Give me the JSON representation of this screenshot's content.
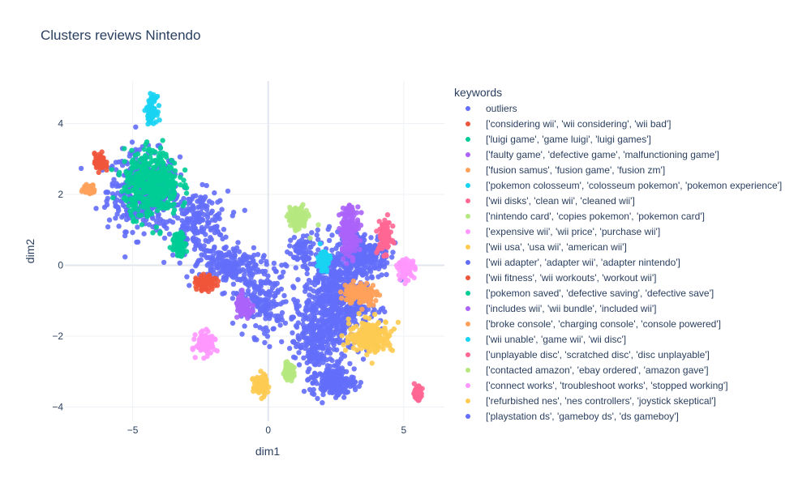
{
  "chart_data": {
    "type": "scatter",
    "title": "Clusters reviews Nintendo",
    "xlabel": "dim1",
    "ylabel": "dim2",
    "xlim": [
      -7.5,
      6.5
    ],
    "ylim": [
      -4.4,
      5.2
    ],
    "xticks": [
      -5,
      0,
      5
    ],
    "yticks": [
      -4,
      -2,
      0,
      2,
      4
    ],
    "grid": true,
    "legend_title": "keywords",
    "legend_position": "right",
    "series": [
      {
        "name": "outliers",
        "color": "#636efa"
      },
      {
        "name": "['considering wii', 'wii considering', 'wii bad']",
        "color": "#EF553B",
        "center": [
          -6.2,
          2.9
        ],
        "spread": [
          0.2,
          0.25
        ]
      },
      {
        "name": "['luigi game', 'game luigi', 'luigi games']",
        "color": "#00cc96",
        "center": [
          -4.3,
          2.3
        ],
        "spread": [
          1.0,
          0.9
        ]
      },
      {
        "name": "['faulty game', 'defective game', 'malfunctioning game']",
        "color": "#ab63fa",
        "center": [
          -0.9,
          -1.2
        ],
        "spread": [
          0.3,
          0.3
        ]
      },
      {
        "name": "['fusion samus', 'fusion game', 'fusion zm']",
        "color": "#FFA15A",
        "center": [
          -6.6,
          2.15
        ],
        "spread": [
          0.2,
          0.12
        ]
      },
      {
        "name": "['pokemon colosseum', 'colosseum pokemon', 'pokemon experience']",
        "color": "#19d3f3",
        "center": [
          -4.3,
          4.4
        ],
        "spread": [
          0.18,
          0.35
        ]
      },
      {
        "name": "['wii disks', 'clean wii', 'cleaned wii']",
        "color": "#FF6692",
        "center": [
          4.3,
          0.8
        ],
        "spread": [
          0.25,
          0.45
        ]
      },
      {
        "name": "['nintendo card', 'copies pokemon', 'pokemon card']",
        "color": "#B6E880",
        "center": [
          1.1,
          1.3
        ],
        "spread": [
          0.35,
          0.35
        ]
      },
      {
        "name": "['expensive wii', 'wii price', 'purchase wii']",
        "color": "#FF97FF",
        "center": [
          -2.3,
          -2.2
        ],
        "spread": [
          0.35,
          0.3
        ]
      },
      {
        "name": "['wii usa', 'usa wii', 'american wii']",
        "color": "#FECB52",
        "center": [
          -0.3,
          -3.4
        ],
        "spread": [
          0.25,
          0.3
        ]
      },
      {
        "name": "['wii adapter', 'adapter wii', 'adapter nintendo']",
        "color": "#636efa"
      },
      {
        "name": "['wii fitness', 'wii workouts', 'workout wii']",
        "color": "#EF553B",
        "center": [
          -2.3,
          -0.5
        ],
        "spread": [
          0.35,
          0.2
        ]
      },
      {
        "name": "['pokemon saved', 'defective saving', 'defective save']",
        "color": "#00cc96",
        "center": [
          -3.3,
          0.6
        ],
        "spread": [
          0.25,
          0.3
        ]
      },
      {
        "name": "['includes wii', 'wii bundle', 'included wii']",
        "color": "#ab63fa",
        "center": [
          3.0,
          1.0
        ],
        "spread": [
          0.35,
          0.7
        ]
      },
      {
        "name": "['broke console', 'charging console', 'console powered']",
        "color": "#FFA15A",
        "center": [
          3.4,
          -0.8
        ],
        "spread": [
          0.6,
          0.3
        ]
      },
      {
        "name": "['wii unable', 'game wii', 'wii disc']",
        "color": "#19d3f3",
        "center": [
          2.05,
          0.15
        ],
        "spread": [
          0.22,
          0.3
        ]
      },
      {
        "name": "['unplayable disc', 'scratched disc', 'disc unplayable']",
        "color": "#FF6692",
        "center": [
          5.5,
          -3.6
        ],
        "spread": [
          0.15,
          0.18
        ]
      },
      {
        "name": "['contacted amazon', 'ebay ordered', 'amazon gave']",
        "color": "#B6E880",
        "center": [
          0.75,
          -3.0
        ],
        "spread": [
          0.2,
          0.2
        ]
      },
      {
        "name": "['connect works', 'troubleshoot works', 'stopped working']",
        "color": "#FF97FF",
        "center": [
          5.1,
          -0.1
        ],
        "spread": [
          0.3,
          0.25
        ]
      },
      {
        "name": "['refurbished nes', 'nes controllers', 'joystick skeptical']",
        "color": "#FECB52",
        "center": [
          3.8,
          -2.0
        ],
        "spread": [
          0.8,
          0.45
        ]
      },
      {
        "name": "['playstation ds', 'gameboy ds', 'ds gameboy']",
        "color": "#636efa"
      }
    ]
  }
}
